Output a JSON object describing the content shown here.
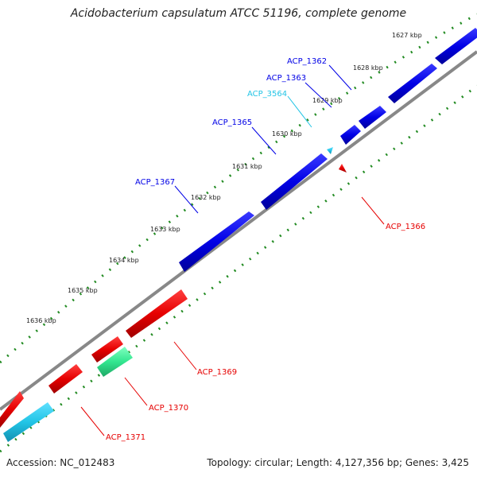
{
  "title": "Acidobacterium capsulatum ATCC 51196, complete genome",
  "accession": "Accession: NC_012483",
  "summary": "Topology: circular; Length: 4,127,356 bp; Genes: 3,425",
  "colors": {
    "forward_gene": "#0000e6",
    "reverse_gene": "#e60000",
    "rna_gene": "#22c4e6",
    "pseudo_gene": "#33e68f",
    "backbone": "#888888",
    "tick": "#228B22"
  },
  "kbp_labels": [
    "1627 kbp",
    "1628 kbp",
    "1629 kbp",
    "1630 kbp",
    "1631 kbp",
    "1632 kbp",
    "1633 kbp",
    "1634 kbp",
    "1635 kbp",
    "1636 kbp"
  ],
  "genes": [
    {
      "id": "ACP_1362",
      "strand": "forward"
    },
    {
      "id": "ACP_1363",
      "strand": "forward"
    },
    {
      "id": "ACP_3564",
      "strand": "forward",
      "type": "rna"
    },
    {
      "id": "ACP_1365",
      "strand": "forward"
    },
    {
      "id": "ACP_1367",
      "strand": "forward"
    },
    {
      "id": "ACP_1366",
      "strand": "reverse"
    },
    {
      "id": "ACP_1369",
      "strand": "reverse"
    },
    {
      "id": "ACP_1370",
      "strand": "reverse",
      "type": "pseudo"
    },
    {
      "id": "ACP_1371",
      "strand": "reverse",
      "type": "rna"
    }
  ]
}
